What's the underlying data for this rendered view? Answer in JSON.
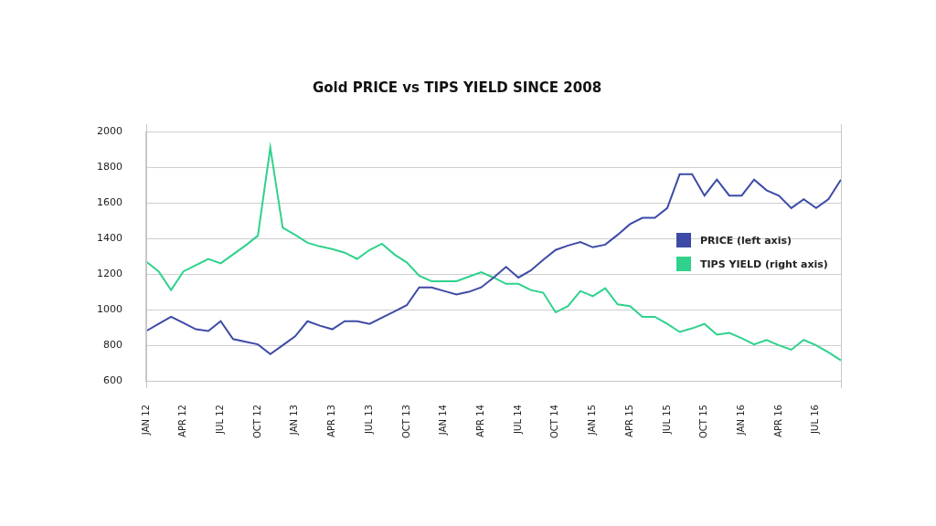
{
  "chart_data": {
    "type": "line",
    "title": "Gold PRICE vs TIPS YIELD SINCE 2008",
    "categories": [
      "JAN 12",
      null,
      null,
      "APR 12",
      null,
      null,
      "JUL 12",
      null,
      null,
      "OCT 12",
      null,
      null,
      "JAN 13",
      null,
      null,
      "APR 13",
      null,
      null,
      "JUL 13",
      null,
      null,
      "OCT 13",
      null,
      null,
      "JAN 14",
      null,
      null,
      "APR 14",
      null,
      null,
      "JUL 14",
      null,
      null,
      "OCT 14",
      null,
      null,
      "JAN 15",
      null,
      null,
      "APR 15",
      null,
      null,
      "JUL 15",
      null,
      null,
      "OCT 15",
      null,
      null,
      "JAN 16",
      null,
      null,
      "APR 16",
      null,
      null,
      "JUL 16",
      null,
      null
    ],
    "series": [
      {
        "name": "PRICE (left axis)",
        "color": "#3d4ba6",
        "values": [
          880,
          920,
          960,
          925,
          890,
          880,
          935,
          835,
          820,
          805,
          750,
          800,
          850,
          935,
          910,
          890,
          935,
          935,
          920,
          955,
          990,
          1025,
          1125,
          1125,
          1105,
          1085,
          1100,
          1125,
          1180,
          1240,
          1180,
          1220,
          1280,
          1335,
          1360,
          1380,
          1350,
          1365,
          1420,
          1480,
          1515,
          1515,
          1570,
          1760,
          1760,
          1640,
          1730,
          1640,
          1640,
          1730,
          1670,
          1640,
          1570,
          1620,
          1570,
          1620,
          1730
        ]
      },
      {
        "name": "TIPS YIELD (right axis)",
        "color": "#2fd28c",
        "values": [
          1270,
          1215,
          1110,
          1215,
          1250,
          1285,
          1260,
          1310,
          1360,
          1415,
          1910,
          1460,
          1420,
          1375,
          1355,
          1340,
          1320,
          1285,
          1335,
          1370,
          1310,
          1265,
          1190,
          1160,
          1160,
          1160,
          1185,
          1210,
          1180,
          1145,
          1145,
          1110,
          1095,
          985,
          1020,
          1105,
          1075,
          1120,
          1030,
          1020,
          960,
          960,
          920,
          875,
          895,
          920,
          860,
          870,
          840,
          805,
          830,
          800,
          775,
          830,
          800,
          760,
          715
        ]
      }
    ],
    "ylim": [
      600,
      2000
    ],
    "yticks": [
      600,
      800,
      1000,
      1200,
      1400,
      1600,
      1800,
      2000
    ],
    "grid": true,
    "legend": "right"
  }
}
